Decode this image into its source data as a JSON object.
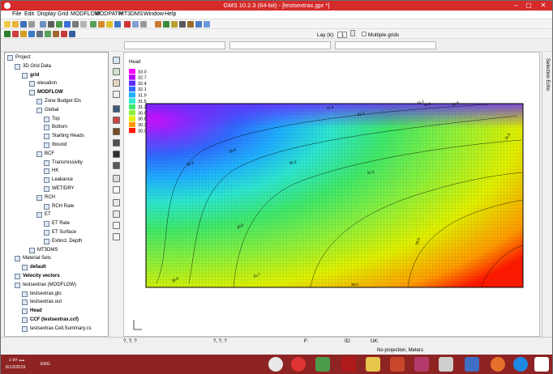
{
  "window": {
    "title": "GMS 10.2.3 (64-bit) - [testsextrax.gpr *]",
    "min": "–",
    "max": "▢",
    "close": "✕"
  },
  "menu": [
    "File",
    "Edit",
    "Display",
    "Grid",
    "MODFLOW",
    "MODPATH",
    "MT3DMS",
    "Window",
    "Help"
  ],
  "toolbar": {
    "lay_label": "Lay (k):",
    "lay_value": "1",
    "multiple_grids": "Multiple grids"
  },
  "tree": [
    {
      "label": "Project",
      "indent": 0,
      "bold": false
    },
    {
      "label": "3D Grid Data",
      "indent": 1,
      "bold": false
    },
    {
      "label": "grid",
      "indent": 2,
      "bold": true
    },
    {
      "label": "elevation",
      "indent": 3,
      "bold": false
    },
    {
      "label": "MODFLOW",
      "indent": 3,
      "bold": true
    },
    {
      "label": "Zone Budget IDs",
      "indent": 4,
      "bold": false
    },
    {
      "label": "Global",
      "indent": 4,
      "bold": false
    },
    {
      "label": "Top",
      "indent": 5,
      "bold": false
    },
    {
      "label": "Bottom",
      "indent": 5,
      "bold": false
    },
    {
      "label": "Starting Heads",
      "indent": 5,
      "bold": false
    },
    {
      "label": "Ibound",
      "indent": 5,
      "bold": false
    },
    {
      "label": "BCF",
      "indent": 4,
      "bold": false
    },
    {
      "label": "Transmissivity",
      "indent": 5,
      "bold": false
    },
    {
      "label": "HK",
      "indent": 5,
      "bold": false
    },
    {
      "label": "Leakance",
      "indent": 5,
      "bold": false
    },
    {
      "label": "WET/DRY",
      "indent": 5,
      "bold": false
    },
    {
      "label": "RCH",
      "indent": 4,
      "bold": false
    },
    {
      "label": "RCH Rate",
      "indent": 5,
      "bold": false
    },
    {
      "label": "ET",
      "indent": 4,
      "bold": false
    },
    {
      "label": "ET Rate",
      "indent": 5,
      "bold": false
    },
    {
      "label": "ET Surface",
      "indent": 5,
      "bold": false
    },
    {
      "label": "Extinct. Depth",
      "indent": 5,
      "bold": false
    },
    {
      "label": "MT3DMS",
      "indent": 3,
      "bold": false
    },
    {
      "label": "Material Sets",
      "indent": 1,
      "bold": false
    },
    {
      "label": "default",
      "indent": 2,
      "bold": true
    },
    {
      "label": "Velocity vectors",
      "indent": 1,
      "bold": true
    },
    {
      "label": "testsextrax (MODFLOW)",
      "indent": 1,
      "bold": false
    },
    {
      "label": "testsextrax.glo",
      "indent": 2,
      "bold": false
    },
    {
      "label": "testsextrax.out",
      "indent": 2,
      "bold": false
    },
    {
      "label": "Head",
      "indent": 2,
      "bold": true
    },
    {
      "label": "CCF (testsextrax.ccf)",
      "indent": 2,
      "bold": true
    },
    {
      "label": "testsextrax.Cell.Summary.cs",
      "indent": 2,
      "bold": false
    }
  ],
  "legend": {
    "title": "Head",
    "values": [
      "33.0",
      "32.7",
      "32.4",
      "32.1",
      "31.9",
      "31.5",
      "31.2",
      "30.9",
      "30.6",
      "30.3",
      "30.0"
    ],
    "colors": [
      "#ff00ff",
      "#b400ff",
      "#5a2cff",
      "#2f6bff",
      "#1fb0ff",
      "#2ce6d0",
      "#3fe86a",
      "#8ef03a",
      "#e0f000",
      "#ff9a00",
      "#ff1a00"
    ]
  },
  "contours": [
    "31.9",
    "31.5",
    "31.2",
    "30.9",
    "30.6",
    "30.3",
    "31.5",
    "31.2",
    "30.9",
    "31.7",
    "30.6",
    "30.0",
    "31.8",
    "31.5",
    "30.9"
  ],
  "right_tab": "Selection Echo",
  "status": {
    "coord1": "?, ?, ?",
    "coord2": "?, ?, ?",
    "f_label": "F:",
    "id_label": "ID:",
    "uk_label": "UK:",
    "projection": "No projection, Meters"
  },
  "taskbar": {
    "time": "سە ٤:٥٧",
    "date": "6/13/2019",
    "lang": "ENG"
  }
}
